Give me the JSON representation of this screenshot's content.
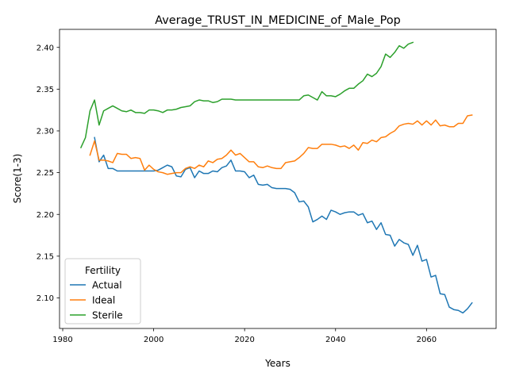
{
  "chart_data": {
    "type": "line",
    "title": "Average_TRUST_IN_MEDICINE_of_Male_Pop",
    "xlabel": "Years",
    "ylabel": "Score(1-3)",
    "xlim": [
      1979.3,
      2075.3
    ],
    "ylim": [
      2.0634,
      2.4216
    ],
    "xticks": [
      1980,
      2000,
      2020,
      2040,
      2060
    ],
    "xtick_labels": [
      "1980",
      "2000",
      "2020",
      "2040",
      "2060"
    ],
    "yticks": [
      2.1,
      2.15,
      2.2,
      2.25,
      2.3,
      2.35,
      2.4
    ],
    "ytick_labels": [
      "2.10",
      "2.15",
      "2.20",
      "2.25",
      "2.30",
      "2.35",
      "2.40"
    ],
    "grid": false,
    "legend": {
      "title": "Fertility",
      "position": "lower-left"
    },
    "colors": {
      "Actual": "#1f77b4",
      "Ideal": "#ff7f0e",
      "Sterile": "#2ca02c"
    },
    "series": [
      {
        "name": "Actual",
        "x": [
          1987,
          1988,
          1989,
          1990,
          1991,
          1992,
          1993,
          1994,
          1995,
          1996,
          1997,
          1998,
          1999,
          2000,
          2001,
          2002,
          2003,
          2004,
          2005,
          2006,
          2007,
          2008,
          2009,
          2010,
          2011,
          2012,
          2013,
          2014,
          2015,
          2016,
          2017,
          2018,
          2019,
          2020,
          2021,
          2022,
          2023,
          2024,
          2025,
          2026,
          2027,
          2028,
          2029,
          2030,
          2031,
          2032,
          2033,
          2034,
          2035,
          2036,
          2037,
          2038,
          2039,
          2040,
          2041,
          2042,
          2043,
          2044,
          2045,
          2046,
          2047,
          2048,
          2049,
          2050,
          2051,
          2052,
          2053,
          2054,
          2055,
          2056,
          2057,
          2058,
          2059,
          2060,
          2061,
          2062,
          2063,
          2064,
          2065,
          2066,
          2067,
          2068,
          2069,
          2070
        ],
        "values": [
          2.292,
          2.263,
          2.271,
          2.255,
          2.255,
          2.252,
          2.252,
          2.252,
          2.252,
          2.252,
          2.252,
          2.252,
          2.252,
          2.252,
          2.253,
          2.256,
          2.259,
          2.257,
          2.246,
          2.245,
          2.254,
          2.256,
          2.244,
          2.252,
          2.249,
          2.249,
          2.252,
          2.251,
          2.256,
          2.258,
          2.265,
          2.252,
          2.252,
          2.251,
          2.244,
          2.247,
          2.236,
          2.235,
          2.236,
          2.232,
          2.231,
          2.231,
          2.231,
          2.23,
          2.226,
          2.215,
          2.216,
          2.209,
          2.191,
          2.194,
          2.198,
          2.194,
          2.205,
          2.203,
          2.2,
          2.202,
          2.203,
          2.203,
          2.199,
          2.201,
          2.19,
          2.192,
          2.182,
          2.19,
          2.176,
          2.175,
          2.162,
          2.17,
          2.166,
          2.164,
          2.151,
          2.163,
          2.144,
          2.146,
          2.125,
          2.127,
          2.105,
          2.104,
          2.089,
          2.086,
          2.085,
          2.082,
          2.087,
          2.094
        ]
      },
      {
        "name": "Ideal",
        "x": [
          1986,
          1987,
          1988,
          1989,
          1990,
          1991,
          1992,
          1993,
          1994,
          1995,
          1996,
          1997,
          1998,
          1999,
          2000,
          2001,
          2002,
          2003,
          2004,
          2005,
          2006,
          2007,
          2008,
          2009,
          2010,
          2011,
          2012,
          2013,
          2014,
          2015,
          2016,
          2017,
          2018,
          2019,
          2020,
          2021,
          2022,
          2023,
          2024,
          2025,
          2026,
          2027,
          2028,
          2029,
          2030,
          2031,
          2032,
          2033,
          2034,
          2035,
          2036,
          2037,
          2038,
          2039,
          2040,
          2041,
          2042,
          2043,
          2044,
          2045,
          2046,
          2047,
          2048,
          2049,
          2050,
          2051,
          2052,
          2053,
          2054,
          2055,
          2056,
          2057,
          2058,
          2059,
          2060,
          2061,
          2062,
          2063,
          2064,
          2065,
          2066,
          2067,
          2068,
          2069,
          2070
        ],
        "values": [
          2.271,
          2.288,
          2.265,
          2.265,
          2.264,
          2.262,
          2.273,
          2.272,
          2.272,
          2.267,
          2.268,
          2.267,
          2.253,
          2.259,
          2.254,
          2.251,
          2.25,
          2.248,
          2.249,
          2.25,
          2.25,
          2.255,
          2.257,
          2.255,
          2.259,
          2.257,
          2.264,
          2.262,
          2.266,
          2.267,
          2.271,
          2.277,
          2.271,
          2.273,
          2.268,
          2.263,
          2.263,
          2.257,
          2.256,
          2.258,
          2.256,
          2.255,
          2.255,
          2.262,
          2.263,
          2.264,
          2.268,
          2.273,
          2.28,
          2.279,
          2.279,
          2.284,
          2.284,
          2.284,
          2.283,
          2.281,
          2.282,
          2.279,
          2.283,
          2.277,
          2.286,
          2.285,
          2.289,
          2.287,
          2.292,
          2.293,
          2.297,
          2.3,
          2.306,
          2.308,
          2.309,
          2.308,
          2.312,
          2.307,
          2.312,
          2.307,
          2.313,
          2.306,
          2.307,
          2.305,
          2.305,
          2.309,
          2.309,
          2.318,
          2.319
        ]
      },
      {
        "name": "Sterile",
        "x": [
          1984,
          1985,
          1986,
          1987,
          1988,
          1989,
          1990,
          1991,
          1992,
          1993,
          1994,
          1995,
          1996,
          1997,
          1998,
          1999,
          2000,
          2001,
          2002,
          2003,
          2004,
          2005,
          2006,
          2007,
          2008,
          2009,
          2010,
          2011,
          2012,
          2013,
          2014,
          2015,
          2016,
          2017,
          2018,
          2019,
          2020,
          2021,
          2022,
          2023,
          2024,
          2025,
          2026,
          2027,
          2028,
          2029,
          2030,
          2031,
          2032,
          2033,
          2034,
          2035,
          2036,
          2037,
          2038,
          2039,
          2040,
          2041,
          2042,
          2043,
          2044,
          2045,
          2046,
          2047,
          2048,
          2049,
          2050,
          2051,
          2052,
          2053,
          2054,
          2055,
          2056,
          2057
        ],
        "values": [
          2.28,
          2.292,
          2.324,
          2.337,
          2.307,
          2.324,
          2.327,
          2.33,
          2.327,
          2.324,
          2.323,
          2.325,
          2.322,
          2.322,
          2.321,
          2.325,
          2.325,
          2.324,
          2.322,
          2.325,
          2.325,
          2.326,
          2.328,
          2.329,
          2.33,
          2.335,
          2.337,
          2.336,
          2.336,
          2.334,
          2.335,
          2.338,
          2.338,
          2.338,
          2.337,
          2.337,
          2.337,
          2.337,
          2.337,
          2.337,
          2.337,
          2.337,
          2.337,
          2.337,
          2.337,
          2.337,
          2.337,
          2.337,
          2.337,
          2.342,
          2.343,
          2.34,
          2.337,
          2.347,
          2.342,
          2.342,
          2.341,
          2.344,
          2.348,
          2.351,
          2.351,
          2.356,
          2.36,
          2.368,
          2.365,
          2.369,
          2.377,
          2.392,
          2.388,
          2.394,
          2.402,
          2.399,
          2.404,
          2.406
        ]
      }
    ]
  }
}
